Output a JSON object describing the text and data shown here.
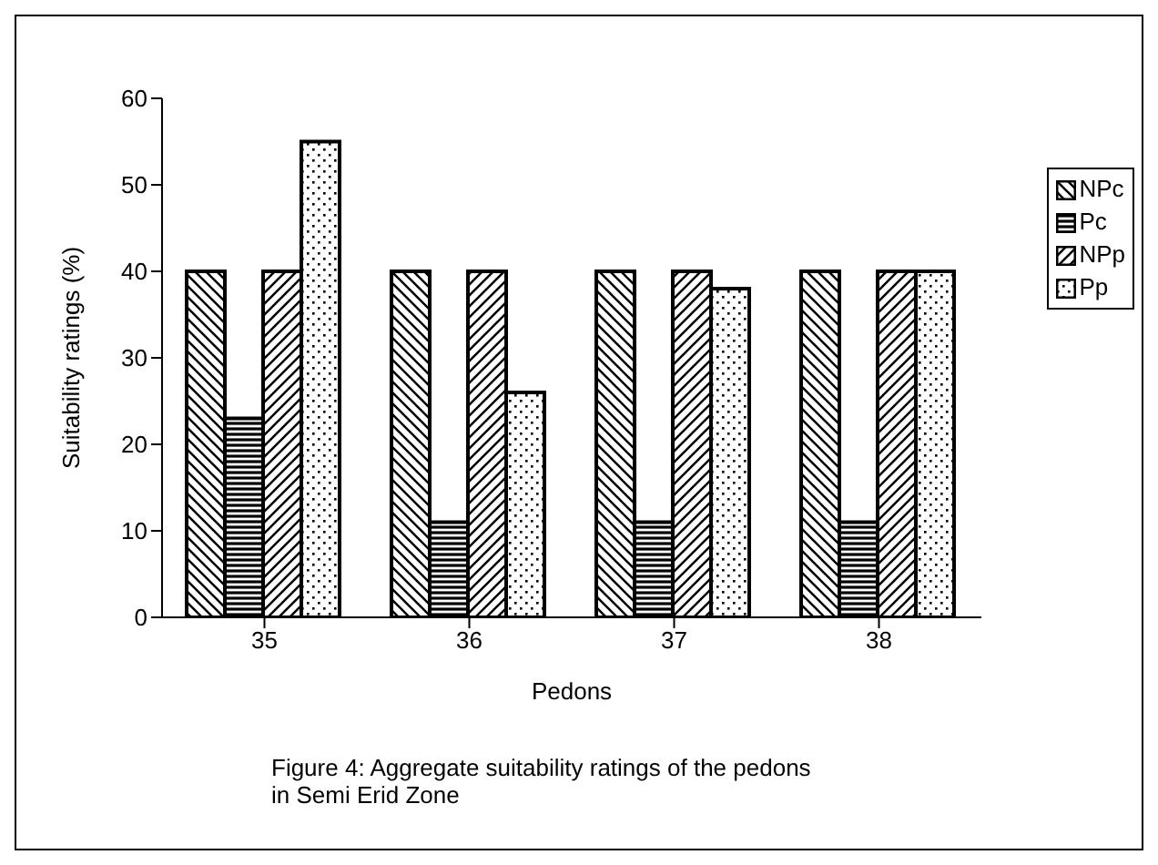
{
  "chart_data": {
    "type": "bar",
    "xlabel": "Pedons",
    "ylabel": "Suitability ratings (%)",
    "categories": [
      "35",
      "36",
      "37",
      "38"
    ],
    "series": [
      {
        "name": "NPc",
        "color": "#000000",
        "values": [
          40,
          40,
          40,
          40
        ]
      },
      {
        "name": "Pc",
        "color": "#000000",
        "values": [
          23,
          11,
          11,
          11
        ]
      },
      {
        "name": "NPp",
        "color": "#000000",
        "values": [
          40,
          40,
          40,
          40
        ]
      },
      {
        "name": "Pp",
        "color": "#000000",
        "values": [
          55,
          26,
          38,
          40
        ]
      }
    ],
    "ylim": [
      0,
      60
    ],
    "yticks": [
      0,
      10,
      20,
      30,
      40,
      50,
      60
    ],
    "grid": false,
    "legend": "top right",
    "annotations": [
      "Figure 4: Aggregate suitability ratings of the pedons\nin Semi Erid Zone"
    ]
  }
}
